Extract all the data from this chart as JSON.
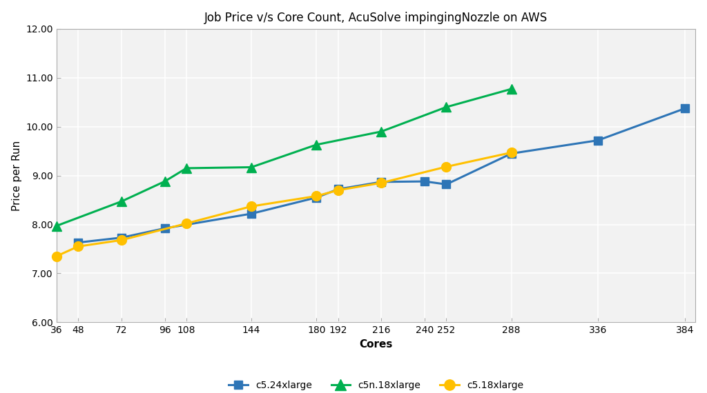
{
  "title": "Job Price v/s Core Count, AcuSolve impingingNozzle on AWS",
  "xlabel": "Cores",
  "ylabel": "Price per Run",
  "xlim": [
    36,
    390
  ],
  "ylim": [
    6.0,
    12.0
  ],
  "yticks": [
    6.0,
    7.0,
    8.0,
    9.0,
    10.0,
    11.0,
    12.0
  ],
  "xticks": [
    36,
    48,
    72,
    96,
    108,
    144,
    180,
    192,
    216,
    240,
    252,
    288,
    336,
    384
  ],
  "series": [
    {
      "label": "c5.24xlarge",
      "color": "#2e75b6",
      "marker": "s",
      "markersize": 8,
      "markerfacecolor": "#2e75b6",
      "markeredgecolor": "#2e75b6",
      "linewidth": 2.2,
      "x": [
        48,
        72,
        96,
        144,
        180,
        192,
        216,
        240,
        252,
        288,
        336,
        384
      ],
      "y": [
        7.63,
        7.73,
        7.92,
        8.22,
        8.55,
        8.72,
        8.87,
        8.88,
        8.82,
        9.45,
        9.72,
        10.37
      ]
    },
    {
      "label": "c5n.18xlarge",
      "color": "#00b050",
      "marker": "^",
      "markersize": 10,
      "markerfacecolor": "#00b050",
      "markeredgecolor": "#00b050",
      "linewidth": 2.2,
      "x": [
        36,
        72,
        96,
        108,
        144,
        180,
        216,
        252,
        288
      ],
      "y": [
        7.97,
        8.47,
        8.88,
        9.15,
        9.17,
        9.63,
        9.9,
        10.4,
        10.77
      ]
    },
    {
      "label": "c5.18xlarge",
      "color": "#ffc000",
      "marker": "o",
      "markersize": 10,
      "markerfacecolor": "#ffc000",
      "markeredgecolor": "#ffc000",
      "linewidth": 2.2,
      "x": [
        36,
        48,
        72,
        108,
        144,
        180,
        192,
        216,
        252,
        288
      ],
      "y": [
        7.35,
        7.55,
        7.68,
        8.02,
        8.37,
        8.58,
        8.7,
        8.85,
        9.18,
        9.47
      ]
    }
  ],
  "plot_bgcolor": "#f2f2f2",
  "fig_bgcolor": "#ffffff",
  "grid_color": "#ffffff",
  "grid_linewidth": 1.2,
  "title_fontsize": 12,
  "label_fontsize": 11,
  "xlabel_fontweight": "bold",
  "tick_fontsize": 10,
  "legend_fontsize": 10,
  "spine_color": "#aaaaaa"
}
